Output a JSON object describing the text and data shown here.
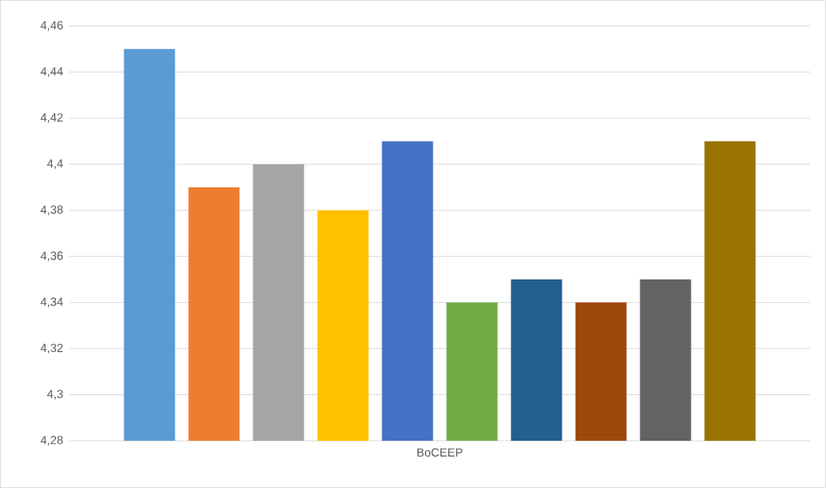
{
  "chart_data": {
    "type": "bar",
    "categories": [
      "BoCEEP"
    ],
    "series": [
      {
        "color": "#5b9bd5",
        "values": [
          4.45
        ]
      },
      {
        "color": "#ed7d31",
        "values": [
          4.39
        ]
      },
      {
        "color": "#a5a5a5",
        "values": [
          4.4
        ]
      },
      {
        "color": "#ffc000",
        "values": [
          4.38
        ]
      },
      {
        "color": "#4472c4",
        "values": [
          4.41
        ]
      },
      {
        "color": "#70ad47",
        "values": [
          4.34
        ]
      },
      {
        "color": "#255e91",
        "values": [
          4.35
        ]
      },
      {
        "color": "#9e480e",
        "values": [
          4.34
        ]
      },
      {
        "color": "#636363",
        "values": [
          4.35
        ]
      },
      {
        "color": "#997300",
        "values": [
          4.41
        ]
      }
    ],
    "ylim": [
      4.28,
      4.46
    ],
    "yticks": [
      {
        "value": 4.28,
        "label": "4,28"
      },
      {
        "value": 4.3,
        "label": "4,3"
      },
      {
        "value": 4.32,
        "label": "4,32"
      },
      {
        "value": 4.34,
        "label": "4,34"
      },
      {
        "value": 4.36,
        "label": "4,36"
      },
      {
        "value": 4.38,
        "label": "4,38"
      },
      {
        "value": 4.4,
        "label": "4,4"
      },
      {
        "value": 4.42,
        "label": "4,42"
      },
      {
        "value": 4.44,
        "label": "4,44"
      },
      {
        "value": 4.46,
        "label": "4,46"
      }
    ],
    "grid": "y"
  }
}
